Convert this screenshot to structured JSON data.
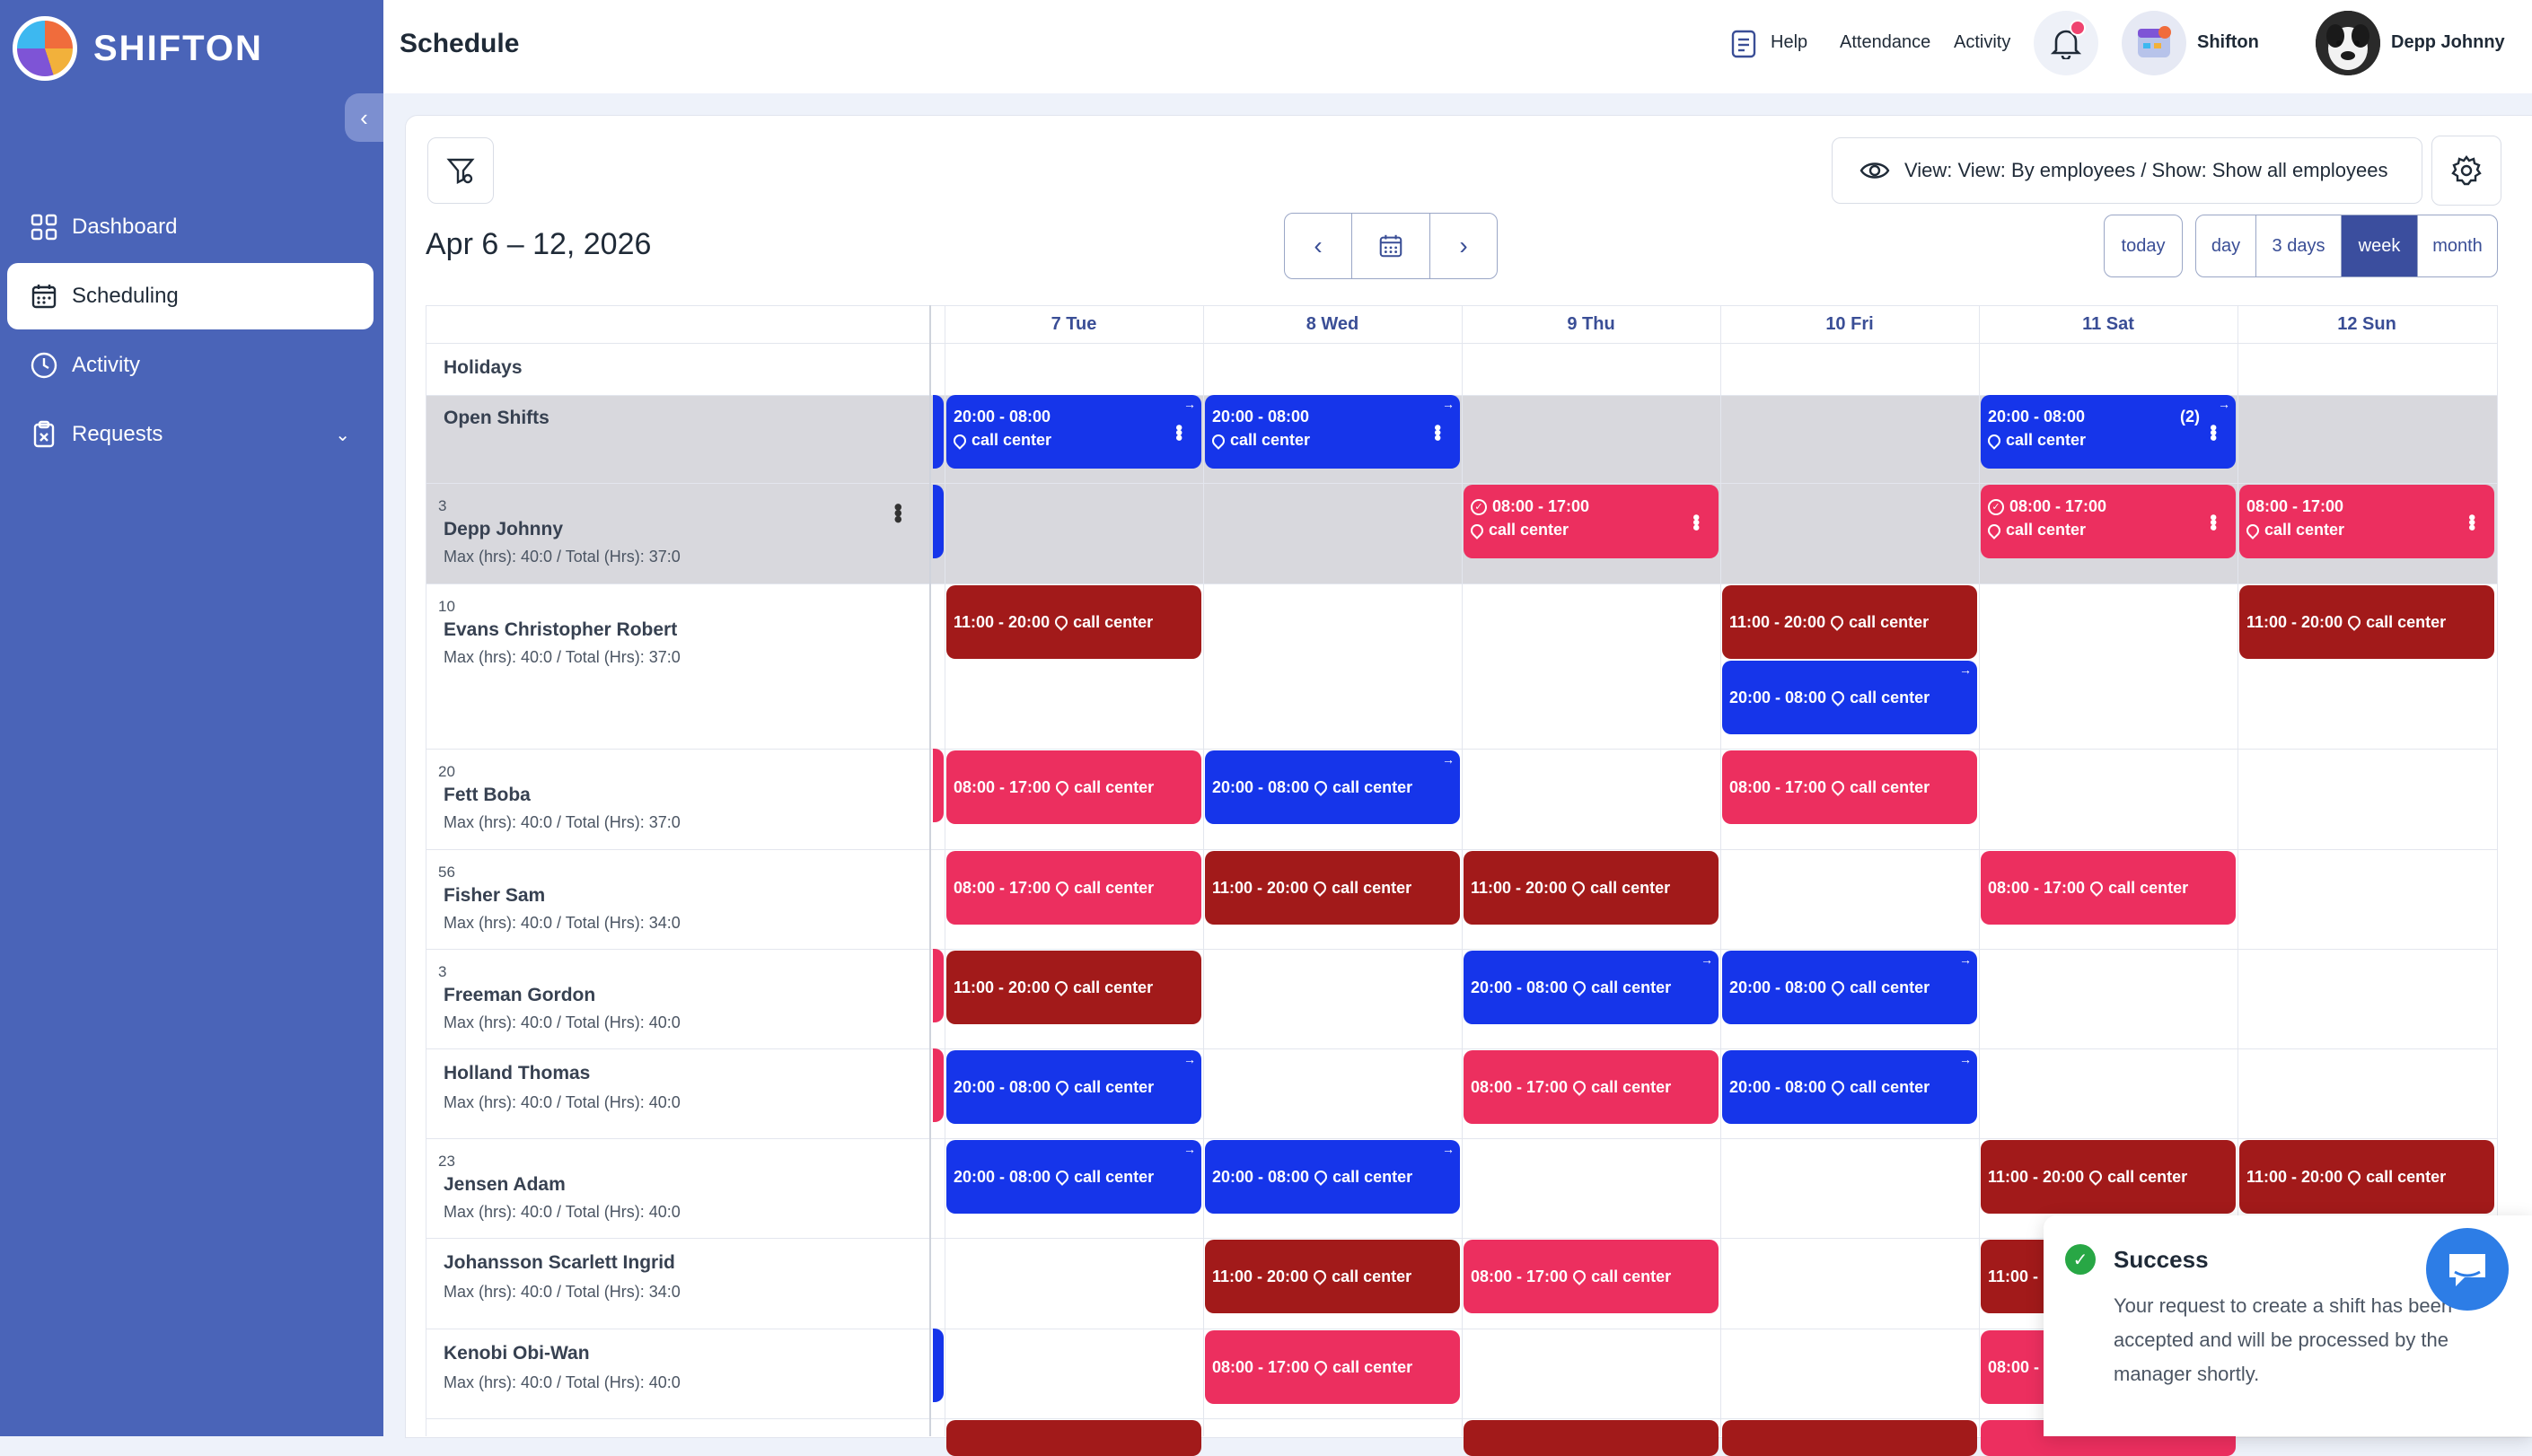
{
  "brand": {
    "name": "SHIFTON"
  },
  "sidebar": {
    "items": [
      {
        "label": "Dashboard",
        "icon": "grid-icon"
      },
      {
        "label": "Scheduling",
        "icon": "calendar-icon",
        "active": true
      },
      {
        "label": "Activity",
        "icon": "clock-icon"
      },
      {
        "label": "Requests",
        "icon": "clipboard-icon",
        "has_chevron": true
      }
    ]
  },
  "header": {
    "title": "Schedule",
    "help": "Help",
    "attendance": "Attendance",
    "activity": "Activity",
    "company": "Shifton",
    "user": "Depp Johnny"
  },
  "toolbar": {
    "view_label": "View: View: By employees / Show: Show all employees",
    "date_range": "Apr 6 – 12, 2026",
    "today": "today",
    "views": [
      "day",
      "3 days",
      "week",
      "month"
    ],
    "active_view": "week"
  },
  "days": [
    "7 Tue",
    "8 Wed",
    "9 Thu",
    "10 Fri",
    "11 Sat",
    "12 Sun"
  ],
  "rows": {
    "holidays": "Holidays",
    "open_shifts": "Open Shifts",
    "employees": [
      {
        "num": "3",
        "name": "Depp Johnny",
        "meta": "Max (hrs): 40:0 / Total (Hrs): 37:0"
      },
      {
        "num": "10",
        "name": "Evans Christopher Robert",
        "meta": "Max (hrs): 40:0 / Total (Hrs): 37:0"
      },
      {
        "num": "20",
        "name": "Fett Boba",
        "meta": "Max (hrs): 40:0 / Total (Hrs): 37:0"
      },
      {
        "num": "56",
        "name": "Fisher Sam",
        "meta": "Max (hrs): 40:0 / Total (Hrs): 34:0"
      },
      {
        "num": "3",
        "name": "Freeman Gordon",
        "meta": "Max (hrs): 40:0 / Total (Hrs): 40:0"
      },
      {
        "num": "",
        "name": "Holland Thomas",
        "meta": "Max (hrs): 40:0 / Total (Hrs): 40:0"
      },
      {
        "num": "23",
        "name": "Jensen Adam",
        "meta": "Max (hrs): 40:0 / Total (Hrs): 40:0"
      },
      {
        "num": "",
        "name": "Johansson Scarlett Ingrid",
        "meta": "Max (hrs): 40:0 / Total (Hrs): 34:0"
      },
      {
        "num": "",
        "name": "Kenobi Obi-Wan",
        "meta": "Max (hrs): 40:0 / Total (Hrs): 40:0"
      }
    ]
  },
  "shift_text": {
    "night": "20:00 - 08:00",
    "day": "08:00 - 17:00",
    "mid": "11:00 - 20:00",
    "mid_cut": "11:00 -",
    "day_cut": "08:00 -",
    "location": "call center",
    "count": "(2)"
  },
  "toast": {
    "title": "Success",
    "message": "Your request to create a shift has been accepted and will be processed by the manager shortly."
  },
  "colors": {
    "sidebar": "#4a64b8",
    "night": "#1635ea",
    "mid": "#a21a1a",
    "day": "#ec2f5f"
  }
}
